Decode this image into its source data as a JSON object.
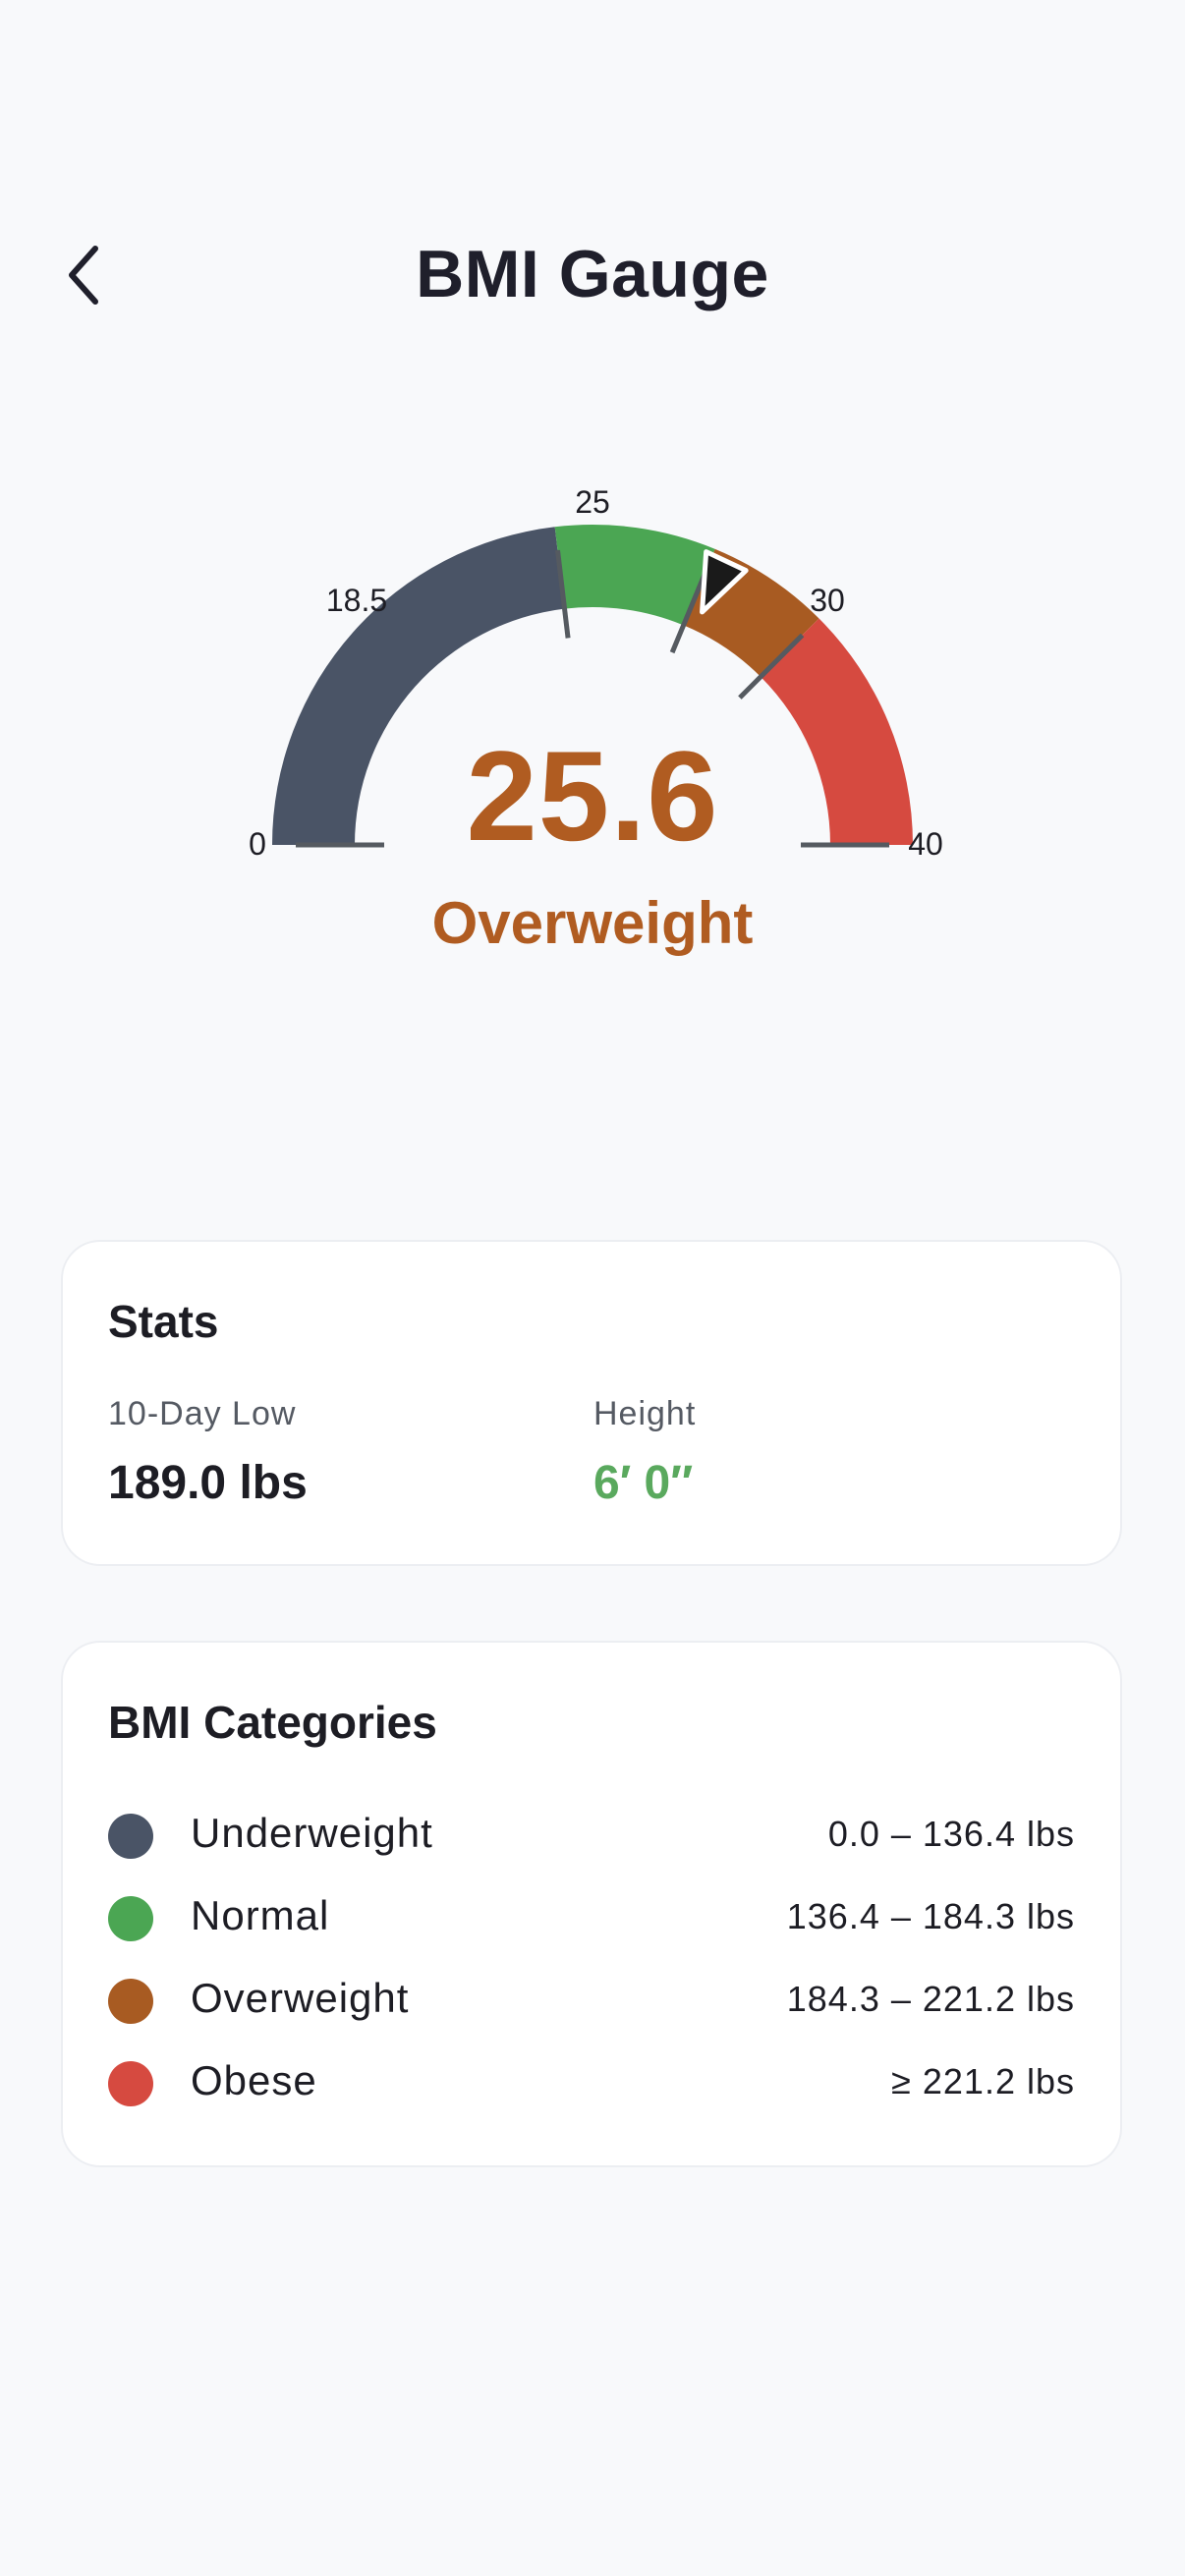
{
  "header": {
    "title": "BMI Gauge",
    "back_icon": "chevron-left-icon"
  },
  "gauge": {
    "min": 0,
    "max": 40,
    "value": 25.6,
    "value_text": "25.6",
    "category": "Overweight",
    "tick_labels": [
      "0",
      "18.5",
      "25",
      "30",
      "40"
    ],
    "ticks": [
      0,
      18.5,
      25,
      30,
      40
    ],
    "segments": [
      {
        "from": 0,
        "to": 18.5,
        "color": "#4a5466"
      },
      {
        "from": 18.5,
        "to": 25,
        "color": "#4ba653"
      },
      {
        "from": 25,
        "to": 30,
        "color": "#a85b22"
      },
      {
        "from": 30,
        "to": 40,
        "color": "#d64a40"
      }
    ],
    "needle_icon": "needle-pointer-icon"
  },
  "stats": {
    "title": "Stats",
    "low_label": "10-Day Low",
    "low_value": "189.0 lbs",
    "height_label": "Height",
    "height_value": "6′ 0″",
    "height_color": "#5aa95e"
  },
  "categories": {
    "title": "BMI Categories",
    "items": [
      {
        "name": "Underweight",
        "range": "0.0 – 136.4 lbs",
        "color": "#4a5466"
      },
      {
        "name": "Normal",
        "range": "136.4 – 184.3 lbs",
        "color": "#4ba653"
      },
      {
        "name": "Overweight",
        "range": "184.3 – 221.2 lbs",
        "color": "#a85b22"
      },
      {
        "name": "Obese",
        "range": "≥ 221.2 lbs",
        "color": "#d64a40"
      }
    ]
  }
}
